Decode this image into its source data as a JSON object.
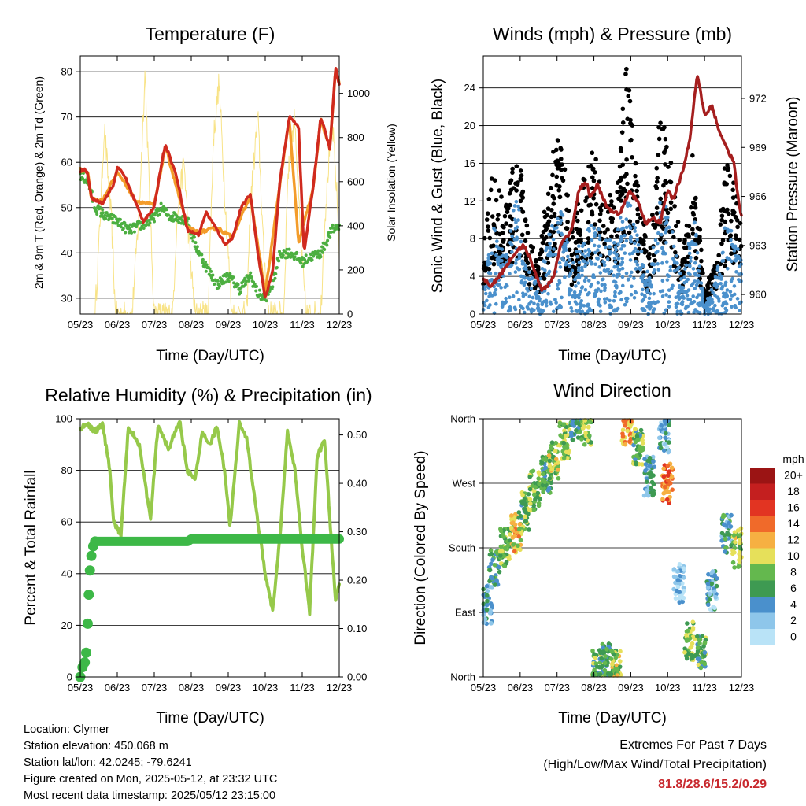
{
  "panels": {
    "temperature": {
      "title": "Temperature (F)",
      "xlabel": "Time (Day/UTC)",
      "ylabel_left": "2m & 9m T (Red, Orange) & 2m Td (Green)",
      "ylabel_right": "Solar Insolation (Yellow)"
    },
    "winds": {
      "title": "Winds (mph) & Pressure (mb)",
      "xlabel": "Time (Day/UTC)",
      "ylabel_left": "Sonic Wind & Gust (Blue, Black)",
      "ylabel_right": "Station Pressure (Maroon)"
    },
    "humidity": {
      "title": "Relative Humidity (%) & Precipitation (in)",
      "xlabel": "Time (Day/UTC)",
      "ylabel_left": "Percent & Total Rainfall"
    },
    "direction": {
      "title": "Wind Direction",
      "xlabel": "Time (Day/UTC)",
      "ylabel_left": "Direction (Colored By Speed)"
    }
  },
  "info": {
    "location": "Location: Clymer",
    "elevation": "Station elevation: 450.068 m",
    "latlon": "Station lat/lon: 42.0245; -79.6241",
    "created": "Figure created on Mon, 2025-05-12, at 23:32 UTC",
    "recent": "Most recent data timestamp: 2025/05/12 23:15:00"
  },
  "extremes": {
    "line1": "Extremes For Past 7 Days",
    "line2": "(High/Low/Max Wind/Total Precipitation)",
    "values": "81.8/28.6/15.2/0.29"
  },
  "chart_data": [
    {
      "type": "line",
      "panel": "temperature",
      "x_ticks": [
        "05/23",
        "06/23",
        "07/23",
        "08/23",
        "09/23",
        "10/23",
        "11/23",
        "12/23"
      ],
      "xlim": [
        0,
        7
      ],
      "ylim": [
        26.5,
        83.5
      ],
      "y_ticks": [
        30,
        40,
        50,
        60,
        70,
        80
      ],
      "y2lim": [
        0,
        1170
      ],
      "y2_ticks": [
        0,
        200,
        400,
        600,
        800,
        1000
      ],
      "colors": {
        "t2m": "#d02a1e",
        "t9m": "#f39c2a",
        "td": "#4caf40",
        "solar": "#f7e07a"
      },
      "series": [
        {
          "key": "t2m",
          "x": [
            0,
            0.1,
            0.2,
            0.3,
            0.6,
            0.9,
            1.0,
            1.2,
            1.5,
            1.7,
            2.0,
            2.2,
            2.3,
            2.6,
            2.9,
            3.2,
            3.4,
            3.7,
            3.9,
            4.1,
            4.35,
            4.6,
            4.8,
            5.0,
            5.2,
            5.4,
            5.65,
            5.9,
            6.05,
            6.3,
            6.5,
            6.75,
            6.9,
            7.0
          ],
          "y": [
            58,
            58.5,
            57.5,
            52,
            51,
            55,
            59,
            57,
            51,
            47,
            50,
            60,
            64,
            57,
            45,
            44,
            49,
            45,
            42,
            43,
            50,
            53,
            40,
            30,
            36,
            56,
            70,
            68,
            40,
            55,
            70,
            63,
            81,
            77
          ]
        },
        {
          "key": "t9m",
          "x": [
            0,
            0.2,
            0.3,
            0.6,
            1.0,
            1.5,
            2.0,
            2.3,
            2.9,
            3.2,
            3.7,
            4.1,
            4.6,
            5.0,
            5.4,
            5.65,
            5.9,
            6.3,
            6.5,
            6.75,
            6.9,
            7.0
          ],
          "y": [
            58.5,
            57.8,
            52,
            51.5,
            58,
            51.5,
            50.5,
            63.5,
            45.5,
            44.5,
            45.5,
            43.5,
            52.5,
            31,
            55.5,
            69.5,
            42,
            54.5,
            69.5,
            63,
            80.5,
            77.5
          ]
        },
        {
          "key": "td",
          "x": [
            0,
            0.2,
            0.4,
            0.7,
            1.0,
            1.3,
            1.6,
            1.9,
            2.2,
            2.4,
            2.6,
            2.9,
            3.1,
            3.4,
            3.7,
            4.0,
            4.3,
            4.6,
            4.8,
            5.0,
            5.2,
            5.4,
            5.7,
            6.0,
            6.2,
            6.5,
            6.8,
            7.0
          ],
          "y": [
            57,
            56,
            50,
            48,
            47,
            45,
            46,
            47,
            50,
            48,
            48,
            47,
            42,
            37,
            33,
            35,
            32,
            35,
            31,
            30,
            33,
            40,
            40,
            38,
            39,
            40,
            45,
            46
          ]
        },
        {
          "key": "solar",
          "x": [
            0.4,
            0.5,
            0.65,
            0.85,
            0.95,
            1.4,
            1.6,
            1.75,
            1.9,
            2.0,
            2.5,
            2.6,
            2.8,
            2.95,
            3.1,
            3.45,
            3.6,
            3.75,
            3.95,
            4.1,
            4.5,
            4.6,
            4.8,
            4.95,
            5.1,
            5.5,
            5.6,
            5.8,
            5.95,
            6.1,
            6.5,
            6.6,
            6.8,
            6.95,
            7.0
          ],
          "y": [
            0,
            300,
            850,
            400,
            0,
            0,
            500,
            1100,
            400,
            0,
            0,
            400,
            700,
            300,
            0,
            0,
            800,
            1050,
            400,
            0,
            0,
            500,
            900,
            300,
            0,
            0,
            600,
            900,
            350,
            0,
            0,
            400,
            900,
            500,
            300
          ]
        }
      ]
    },
    {
      "type": "scatter",
      "panel": "winds",
      "x_ticks": [
        "05/23",
        "06/23",
        "07/23",
        "08/23",
        "09/23",
        "10/23",
        "11/23",
        "12/23"
      ],
      "xlim": [
        0,
        7
      ],
      "ylim": [
        0,
        27.4
      ],
      "y_ticks": [
        0,
        4,
        8,
        12,
        16,
        20,
        24
      ],
      "y2lim": [
        958.8,
        974.6
      ],
      "y2_ticks": [
        960,
        963,
        966,
        969,
        972
      ],
      "colors": {
        "wind": "#4a90cc",
        "gust": "#000000",
        "pressure": "#a51e1e"
      },
      "series": [
        {
          "key": "gust_envelope",
          "x": [
            0,
            0.25,
            0.6,
            0.9,
            1.2,
            1.5,
            1.8,
            2.1,
            2.4,
            2.7,
            3.0,
            3.3,
            3.6,
            3.9,
            4.2,
            4.5,
            4.8,
            5.1,
            5.4,
            5.7,
            6.0,
            6.3,
            6.6,
            6.9,
            7.0
          ],
          "y": [
            6,
            15,
            10,
            18,
            8,
            5,
            15,
            18,
            8,
            14,
            16,
            12,
            12,
            25,
            12,
            6,
            20,
            15,
            5,
            17,
            2,
            6,
            16,
            11,
            9
          ]
        },
        {
          "key": "wind_envelope",
          "x": [
            0,
            0.25,
            0.6,
            0.9,
            1.2,
            1.5,
            1.8,
            2.1,
            2.4,
            2.7,
            3.0,
            3.3,
            3.6,
            3.9,
            4.2,
            4.5,
            4.8,
            5.1,
            5.4,
            5.7,
            6.0,
            6.3,
            6.6,
            6.9,
            7.0
          ],
          "y": [
            3,
            10,
            6,
            13,
            5,
            3,
            9,
            12,
            5,
            9,
            10,
            8,
            8,
            14,
            8,
            4,
            13,
            10,
            3,
            11,
            1,
            4,
            11,
            7,
            6
          ]
        },
        {
          "key": "pressure",
          "x": [
            0,
            0.2,
            0.4,
            0.7,
            0.95,
            1.1,
            1.3,
            1.6,
            1.9,
            2.1,
            2.4,
            2.6,
            2.8,
            2.9,
            3.1,
            3.3,
            3.5,
            3.7,
            3.95,
            4.2,
            4.4,
            4.6,
            4.8,
            5.0,
            5.15,
            5.4,
            5.6,
            5.8,
            6.0,
            6.2,
            6.4,
            6.6,
            6.8,
            6.9,
            7.0
          ],
          "y": [
            961,
            960.5,
            961,
            962,
            962.8,
            963,
            962,
            960.2,
            961,
            963,
            964,
            966.5,
            966.8,
            966,
            966.7,
            965.6,
            965,
            964.9,
            966.3,
            965.7,
            964.3,
            964.7,
            964.4,
            966.4,
            965.8,
            967.5,
            969.5,
            973.5,
            971,
            971.5,
            970,
            969,
            968,
            966,
            964.8
          ]
        }
      ]
    },
    {
      "type": "line",
      "panel": "humidity",
      "x_ticks": [
        "05/23",
        "06/23",
        "07/23",
        "08/23",
        "09/23",
        "10/23",
        "11/23",
        "12/23"
      ],
      "xlim": [
        0,
        7
      ],
      "ylim": [
        0,
        100
      ],
      "y_ticks": [
        0,
        20,
        40,
        60,
        80,
        100
      ],
      "y2lim": [
        0,
        0.5335
      ],
      "y2_ticks": [
        "0.00",
        "0.10",
        "0.20",
        "0.30",
        "0.40",
        "0.50"
      ],
      "colors": {
        "rh": "#96c94a",
        "precip": "#3db847"
      },
      "series": [
        {
          "key": "rh",
          "x": [
            0,
            0.2,
            0.4,
            0.6,
            0.8,
            0.9,
            1.1,
            1.3,
            1.6,
            1.8,
            1.9,
            2.1,
            2.4,
            2.6,
            2.7,
            2.9,
            3.1,
            3.3,
            3.5,
            3.7,
            3.9,
            4.05,
            4.3,
            4.5,
            4.8,
            5.0,
            5.2,
            5.4,
            5.6,
            5.8,
            6.0,
            6.2,
            6.4,
            6.6,
            6.8,
            6.9,
            7.0
          ],
          "y": [
            96,
            98,
            95,
            98,
            80,
            60,
            55,
            97,
            90,
            70,
            62,
            97,
            88,
            97,
            98,
            80,
            76,
            95,
            90,
            97,
            80,
            58,
            98,
            92,
            60,
            40,
            25,
            55,
            95,
            80,
            50,
            25,
            85,
            92,
            50,
            30,
            35
          ]
        },
        {
          "key": "precip",
          "x": [
            0,
            0.06,
            0.12,
            0.16,
            0.2,
            0.23,
            0.26,
            0.3,
            0.35,
            0.4,
            0.5,
            1.0,
            1.5,
            2.0,
            2.5,
            2.9,
            3.0,
            3.5,
            4.0,
            4.5,
            5.0,
            5.5,
            6.0,
            6.5,
            7.0
          ],
          "y": [
            0,
            0.02,
            0.03,
            0.05,
            0.11,
            0.17,
            0.22,
            0.25,
            0.27,
            0.28,
            0.28,
            0.28,
            0.28,
            0.28,
            0.28,
            0.28,
            0.285,
            0.285,
            0.285,
            0.285,
            0.285,
            0.285,
            0.285,
            0.285,
            0.285
          ]
        }
      ]
    },
    {
      "type": "scatter",
      "panel": "direction",
      "x_ticks": [
        "05/23",
        "06/23",
        "07/23",
        "08/23",
        "09/23",
        "10/23",
        "11/23",
        "12/23"
      ],
      "xlim": [
        0,
        7
      ],
      "y_tick_labels": [
        "North",
        "East",
        "South",
        "West",
        "North"
      ],
      "ylim": [
        0,
        360
      ],
      "legend_title": "mph",
      "legend_labels": [
        "0",
        "2",
        "4",
        "6",
        "8",
        "10",
        "12",
        "14",
        "16",
        "18",
        "20+"
      ],
      "legend_colors": [
        "#b9e3f7",
        "#8ec6ea",
        "#4a90cc",
        "#3e9a52",
        "#64b84e",
        "#e6e05a",
        "#f6b042",
        "#f06a2a",
        "#e23422",
        "#c41f1f",
        "#9b1414"
      ],
      "series": [
        {
          "key": "clusters",
          "x": [
            0.1,
            0.3,
            0.6,
            0.9,
            1.1,
            1.4,
            1.7,
            1.9,
            2.2,
            2.5,
            2.8,
            3.1,
            3.3,
            3.6,
            3.9,
            4.2,
            4.5,
            4.9,
            5.0,
            5.3,
            5.6,
            5.9,
            6.2,
            6.6,
            6.9
          ],
          "y": [
            100,
            150,
            180,
            200,
            230,
            260,
            280,
            300,
            330,
            355,
            350,
            10,
            20,
            10,
            350,
            320,
            280,
            340,
            270,
            130,
            50,
            40,
            120,
            200,
            180
          ],
          "speed": [
            4,
            6,
            8,
            11,
            7,
            8,
            6,
            9,
            8,
            6,
            8,
            7,
            6,
            9,
            12,
            7,
            4,
            3,
            14,
            2,
            8,
            7,
            3,
            5,
            9
          ]
        }
      ]
    }
  ]
}
